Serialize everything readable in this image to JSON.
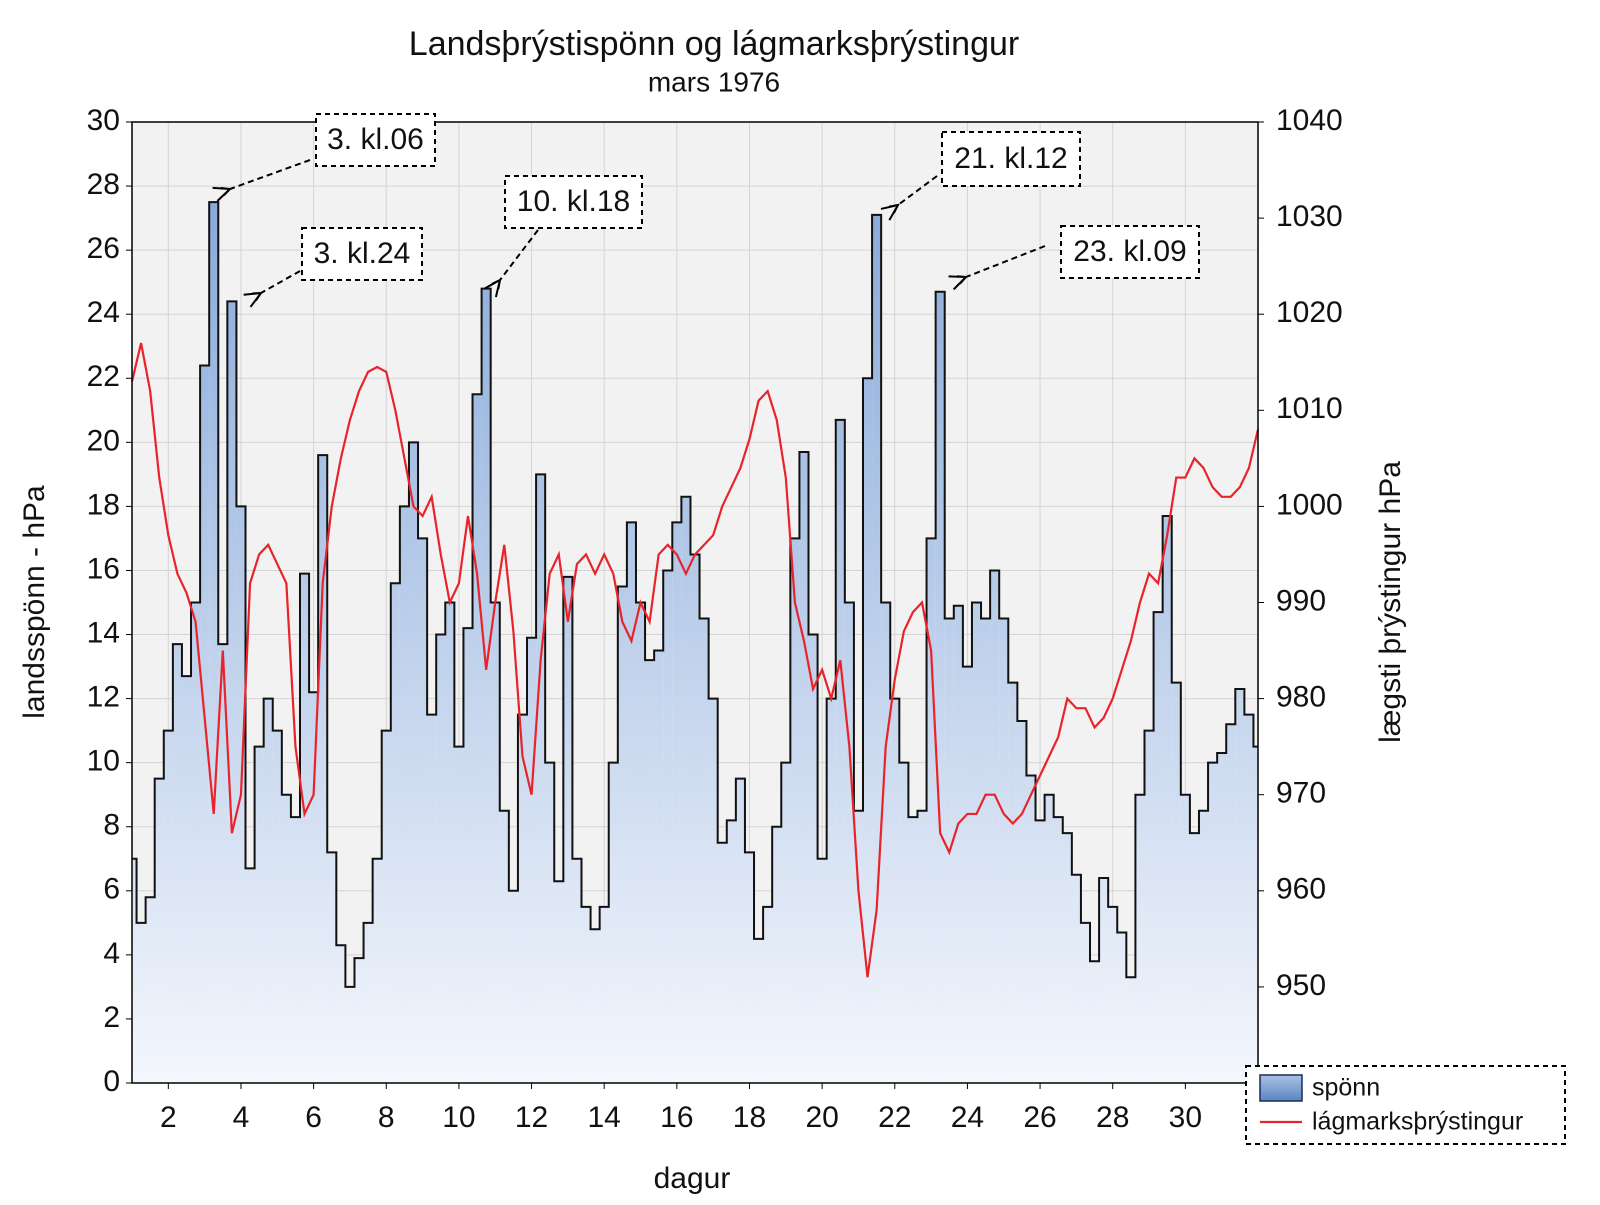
{
  "chart_data": {
    "type": "step-line",
    "title": "Landsþrýstispönn og lágmarksþrýstingur",
    "subtitle": "mars 1976",
    "xlabel": "dagur",
    "ylabel": "landsspönn - hPa",
    "y2label": "lægsti þrýstingur hPa",
    "xlim": [
      1,
      32
    ],
    "xticks": [
      2,
      4,
      6,
      8,
      10,
      12,
      14,
      16,
      18,
      20,
      22,
      24,
      26,
      28,
      30
    ],
    "ylim": [
      0,
      30
    ],
    "yticks": [
      0,
      2,
      4,
      6,
      8,
      10,
      12,
      14,
      16,
      18,
      20,
      22,
      24,
      26,
      28,
      30
    ],
    "y2lim": [
      940,
      1040
    ],
    "y2ticks": [
      950,
      960,
      970,
      980,
      990,
      1000,
      1010,
      1020,
      1030,
      1040
    ],
    "grid": true,
    "legend": "lower right",
    "x": [
      1,
      1.25,
      1.5,
      1.75,
      2,
      2.25,
      2.5,
      2.75,
      3,
      3.25,
      3.5,
      3.75,
      4,
      4.25,
      4.5,
      4.75,
      5,
      5.25,
      5.5,
      5.75,
      6,
      6.25,
      6.5,
      6.75,
      7,
      7.25,
      7.5,
      7.75,
      8,
      8.25,
      8.5,
      8.75,
      9,
      9.25,
      9.5,
      9.75,
      10,
      10.25,
      10.5,
      10.75,
      11,
      11.25,
      11.5,
      11.75,
      12,
      12.25,
      12.5,
      12.75,
      13,
      13.25,
      13.5,
      13.75,
      14,
      14.25,
      14.5,
      14.75,
      15,
      15.25,
      15.5,
      15.75,
      16,
      16.25,
      16.5,
      16.75,
      17,
      17.25,
      17.5,
      17.75,
      18,
      18.25,
      18.5,
      18.75,
      19,
      19.25,
      19.5,
      19.75,
      20,
      20.25,
      20.5,
      20.75,
      21,
      21.25,
      21.5,
      21.75,
      22,
      22.25,
      22.5,
      22.75,
      23,
      23.25,
      23.5,
      23.75,
      24,
      24.25,
      24.5,
      24.75,
      25,
      25.25,
      25.5,
      25.75,
      26,
      26.25,
      26.5,
      26.75,
      27,
      27.25,
      27.5,
      27.75,
      28,
      28.25,
      28.5,
      28.75,
      29,
      29.25,
      29.5,
      29.75,
      30,
      30.25,
      30.5,
      30.75,
      31,
      31.25,
      31.5,
      31.75,
      32
    ],
    "series": [
      {
        "name": "spönn",
        "color": "#6f95cc",
        "values": [
          7,
          5,
          5.8,
          9.5,
          11,
          13.7,
          12.7,
          15,
          22.4,
          27.5,
          13.7,
          24.4,
          18,
          6.7,
          10.5,
          12,
          11,
          9,
          8.3,
          15.9,
          12.2,
          19.6,
          7.2,
          4.3,
          3,
          3.9,
          5,
          7,
          11,
          15.6,
          18,
          20,
          17,
          11.5,
          14,
          15,
          10.5,
          14.2,
          21.5,
          24.8,
          15,
          8.5,
          6,
          11.5,
          13.9,
          19,
          10,
          6.3,
          15.8,
          7,
          5.5,
          4.8,
          5.5,
          10,
          15.5,
          17.5,
          15,
          13.2,
          13.5,
          16,
          17.5,
          18.3,
          16.5,
          14.5,
          12,
          7.5,
          8.2,
          9.5,
          7.2,
          4.5,
          5.5,
          8,
          10,
          17,
          19.7,
          14,
          7,
          12,
          20.7,
          15,
          8.5,
          22,
          27.1,
          15,
          12,
          10,
          8.3,
          8.5,
          17,
          24.7,
          14.5,
          14.9,
          13,
          15,
          14.5,
          16,
          14.5,
          12.5,
          11.3,
          9.6,
          8.2,
          9,
          8.3,
          7.8,
          6.5,
          5,
          3.8,
          6.4,
          5.5,
          4.7,
          3.3,
          9,
          11,
          14.7,
          17.7,
          12.5,
          9,
          7.8,
          8.5,
          10,
          10.3,
          11.2,
          12.3,
          11.5,
          10.5
        ]
      },
      {
        "name": "lágmarksþrýstingur",
        "color": "#e8242a",
        "axis": "y2",
        "values": [
          1013,
          1017,
          1012,
          1003,
          997,
          993,
          991,
          988,
          978,
          968,
          985,
          966,
          970,
          992,
          995,
          996,
          994,
          992,
          975,
          968,
          970,
          992,
          1000,
          1005,
          1009,
          1012,
          1014,
          1014.5,
          1014,
          1010,
          1005,
          1000,
          999,
          1001,
          995,
          990,
          992,
          999,
          993,
          983,
          990,
          996,
          987,
          974,
          970,
          984,
          993,
          995,
          988,
          994,
          995,
          993,
          995,
          993,
          988,
          986,
          990,
          988,
          995,
          996,
          995,
          993,
          995,
          996,
          997,
          1000,
          1002,
          1004,
          1007,
          1011,
          1012,
          1009,
          1003,
          990,
          986,
          981,
          983,
          980,
          984,
          975,
          960,
          951,
          958,
          975,
          982,
          987,
          989,
          990,
          985,
          966,
          964,
          967,
          968,
          968,
          970,
          970,
          968,
          967,
          968,
          970,
          972,
          974,
          976,
          980,
          979,
          979,
          977,
          978,
          980,
          983,
          986,
          990,
          993,
          992,
          997,
          1003,
          1003,
          1005,
          1004,
          1002,
          1001,
          1001,
          1002,
          1004,
          1008
        ]
      }
    ],
    "annotations": [
      {
        "text": "3. kl.06"
      },
      {
        "text": "3. kl.24"
      },
      {
        "text": "10. kl.18"
      },
      {
        "text": "21. kl.12"
      },
      {
        "text": "23. kl.09"
      }
    ]
  }
}
